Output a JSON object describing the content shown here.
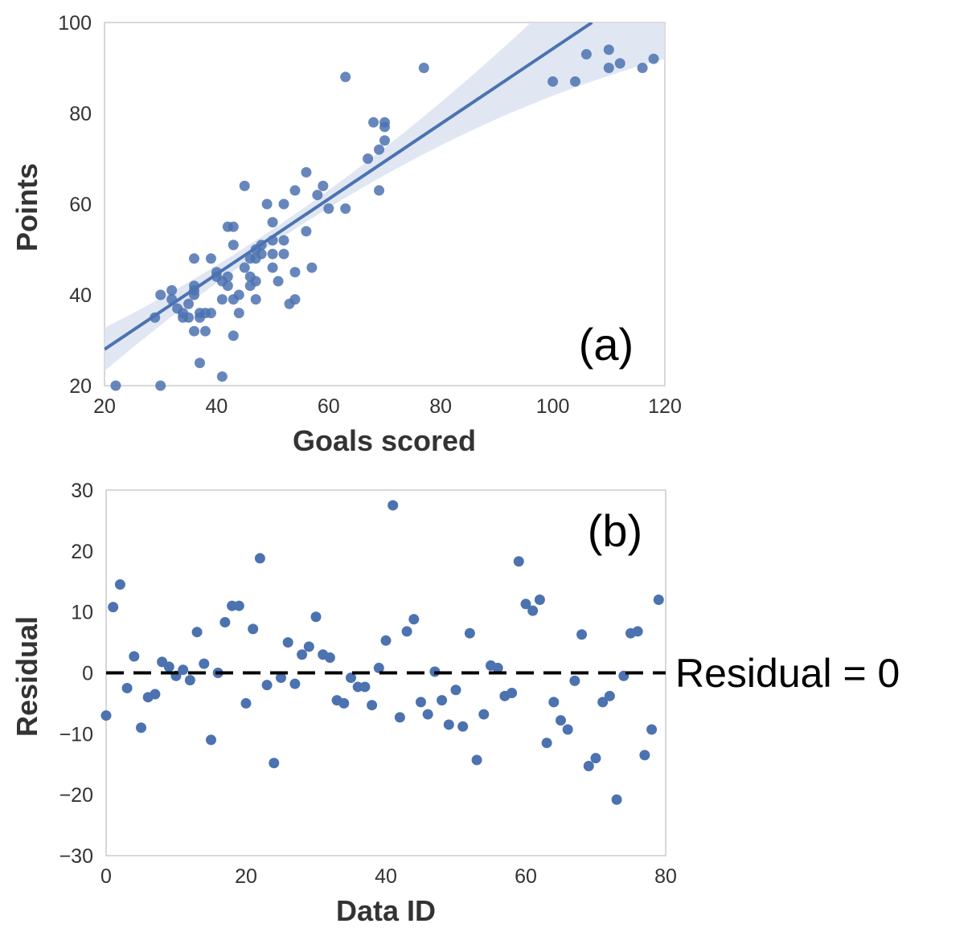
{
  "colors": {
    "points": "#4c72b0",
    "band": "#dbe3f1",
    "frame": "#cccccc",
    "dashed": "#000000"
  },
  "chart_data": [
    {
      "type": "scatter",
      "panel_label": "(a)",
      "xlabel": "Goals scored",
      "ylabel": "Points",
      "xlim": [
        20,
        120
      ],
      "ylim": [
        20,
        100
      ],
      "xticks": [
        "20",
        "40",
        "60",
        "80",
        "100",
        "120"
      ],
      "yticks": [
        "20",
        "40",
        "60",
        "80",
        "100"
      ],
      "grid": false,
      "regression": {
        "x": [
          20,
          107
        ],
        "y": [
          28,
          100
        ]
      },
      "points": [
        [
          22,
          20
        ],
        [
          30,
          20
        ],
        [
          29,
          35
        ],
        [
          30,
          40
        ],
        [
          32,
          41
        ],
        [
          32,
          39
        ],
        [
          33,
          37
        ],
        [
          34,
          36
        ],
        [
          34,
          35
        ],
        [
          35,
          38
        ],
        [
          35,
          35
        ],
        [
          36,
          42
        ],
        [
          36,
          41
        ],
        [
          36,
          40
        ],
        [
          36,
          32
        ],
        [
          36,
          48
        ],
        [
          37,
          36
        ],
        [
          37,
          35
        ],
        [
          37,
          25
        ],
        [
          38,
          32
        ],
        [
          38,
          36
        ],
        [
          39,
          48
        ],
        [
          39,
          36
        ],
        [
          40,
          45
        ],
        [
          40,
          44
        ],
        [
          41,
          43
        ],
        [
          41,
          39
        ],
        [
          41,
          22
        ],
        [
          42,
          55
        ],
        [
          42,
          42
        ],
        [
          42,
          44
        ],
        [
          43,
          39
        ],
        [
          43,
          55
        ],
        [
          43,
          51
        ],
        [
          43,
          31
        ],
        [
          44,
          36
        ],
        [
          44,
          40
        ],
        [
          45,
          64
        ],
        [
          45,
          46
        ],
        [
          46,
          42
        ],
        [
          46,
          48
        ],
        [
          46,
          44
        ],
        [
          47,
          43
        ],
        [
          47,
          48
        ],
        [
          47,
          39
        ],
        [
          47,
          50
        ],
        [
          48,
          51
        ],
        [
          48,
          49
        ],
        [
          49,
          60
        ],
        [
          50,
          52
        ],
        [
          50,
          49
        ],
        [
          50,
          56
        ],
        [
          50,
          46
        ],
        [
          51,
          43
        ],
        [
          52,
          52
        ],
        [
          52,
          49
        ],
        [
          52,
          60
        ],
        [
          53,
          38
        ],
        [
          54,
          63
        ],
        [
          54,
          45
        ],
        [
          54,
          39
        ],
        [
          56,
          67
        ],
        [
          56,
          54
        ],
        [
          57,
          46
        ],
        [
          58,
          62
        ],
        [
          59,
          64
        ],
        [
          60,
          59
        ],
        [
          63,
          59
        ],
        [
          63,
          88
        ],
        [
          67,
          70
        ],
        [
          68,
          78
        ],
        [
          69,
          72
        ],
        [
          69,
          63
        ],
        [
          70,
          78
        ],
        [
          70,
          77
        ],
        [
          70,
          74
        ],
        [
          77,
          90
        ],
        [
          100,
          87
        ],
        [
          104,
          87
        ],
        [
          106,
          93
        ],
        [
          110,
          94
        ],
        [
          110,
          90
        ],
        [
          112,
          91
        ],
        [
          116,
          90
        ],
        [
          118,
          92
        ]
      ]
    },
    {
      "type": "scatter",
      "panel_label": "(b)",
      "xlabel": "Data ID",
      "ylabel": "Residual",
      "xlim": [
        0,
        80
      ],
      "ylim": [
        -30,
        30
      ],
      "xticks": [
        "0",
        "20",
        "40",
        "60",
        "80"
      ],
      "yticks": [
        "30",
        "20",
        "10",
        "0",
        "−10",
        "−20",
        "−30"
      ],
      "grid": false,
      "reference_line": {
        "y": 0,
        "label": "Residual  = 0"
      },
      "points": [
        [
          0,
          -7
        ],
        [
          1,
          10.8
        ],
        [
          2,
          14.5
        ],
        [
          3,
          -2.5
        ],
        [
          4,
          2.7
        ],
        [
          5,
          -9
        ],
        [
          6,
          -4
        ],
        [
          7,
          -3.5
        ],
        [
          8,
          1.8
        ],
        [
          9,
          1
        ],
        [
          10,
          -0.5
        ],
        [
          11,
          0.5
        ],
        [
          12,
          -1.2
        ],
        [
          13,
          6.7
        ],
        [
          14,
          1.5
        ],
        [
          15,
          -11
        ],
        [
          16,
          0
        ],
        [
          17,
          8.3
        ],
        [
          18,
          11
        ],
        [
          19,
          11
        ],
        [
          20,
          -5
        ],
        [
          21,
          7.2
        ],
        [
          22,
          18.8
        ],
        [
          23,
          -2
        ],
        [
          24,
          -14.8
        ],
        [
          25,
          -0.8
        ],
        [
          26,
          5
        ],
        [
          27,
          -1.8
        ],
        [
          28,
          3
        ],
        [
          29,
          4.3
        ],
        [
          30,
          9.2
        ],
        [
          31,
          3
        ],
        [
          32,
          2.5
        ],
        [
          33,
          -4.5
        ],
        [
          34,
          -5
        ],
        [
          35,
          -0.8
        ],
        [
          36,
          -2.3
        ],
        [
          37,
          -2.3
        ],
        [
          38,
          -5.3
        ],
        [
          39,
          0.8
        ],
        [
          40,
          5.3
        ],
        [
          41,
          27.5
        ],
        [
          42,
          -7.3
        ],
        [
          43,
          6.8
        ],
        [
          44,
          8.8
        ],
        [
          45,
          -4.8
        ],
        [
          46,
          -6.8
        ],
        [
          47,
          0.2
        ],
        [
          48,
          -4.5
        ],
        [
          49,
          -8.5
        ],
        [
          50,
          -2.8
        ],
        [
          51,
          -8.8
        ],
        [
          52,
          6.5
        ],
        [
          53,
          -14.3
        ],
        [
          54,
          -6.8
        ],
        [
          55,
          1.2
        ],
        [
          56,
          0.8
        ],
        [
          57,
          -3.8
        ],
        [
          58,
          -3.3
        ],
        [
          59,
          18.3
        ],
        [
          60,
          11.3
        ],
        [
          61,
          10.2
        ],
        [
          62,
          12
        ],
        [
          63,
          -11.5
        ],
        [
          64,
          -4.8
        ],
        [
          65,
          -7.8
        ],
        [
          66,
          -9.3
        ],
        [
          67,
          -1.3
        ],
        [
          68,
          6.3
        ],
        [
          69,
          -15.3
        ],
        [
          70,
          -14
        ],
        [
          71,
          -4.8
        ],
        [
          72,
          -3.8
        ],
        [
          73,
          -20.8
        ],
        [
          74,
          -0.5
        ],
        [
          75,
          6.5
        ],
        [
          76,
          6.8
        ],
        [
          77,
          -13.5
        ],
        [
          78,
          -9.3
        ],
        [
          79,
          12
        ]
      ]
    }
  ]
}
